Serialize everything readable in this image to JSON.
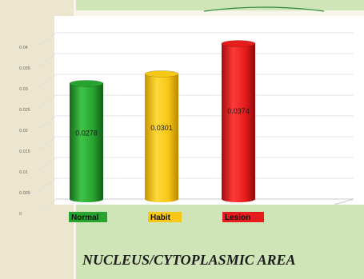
{
  "chart_data": {
    "type": "bar",
    "title": "NUCLEUS/CYTOPLASMIC AREA",
    "categories": [
      "Normal",
      "Habit",
      "Lesion"
    ],
    "values": [
      0.0278,
      0.0301,
      0.0374
    ],
    "value_labels": [
      "0.0278",
      "0.0301",
      "0.0374"
    ],
    "ylim": [
      0,
      0.04
    ],
    "yticks": [
      0,
      0.005,
      0.01,
      0.015,
      0.02,
      0.025,
      0.03,
      0.035,
      0.04
    ],
    "ytick_labels": [
      "0",
      "0.005",
      "0.01",
      "0.015",
      "0.02",
      "0.025",
      "0.03",
      "0.035",
      "0.04"
    ],
    "grid": true,
    "colors": {
      "Normal": "#27a42f",
      "Habit": "#f7c715",
      "Lesion": "#e71c1c",
      "background": "#f7f4ea",
      "band": "#cfe4b7",
      "grid": "#dcdcdc"
    }
  }
}
